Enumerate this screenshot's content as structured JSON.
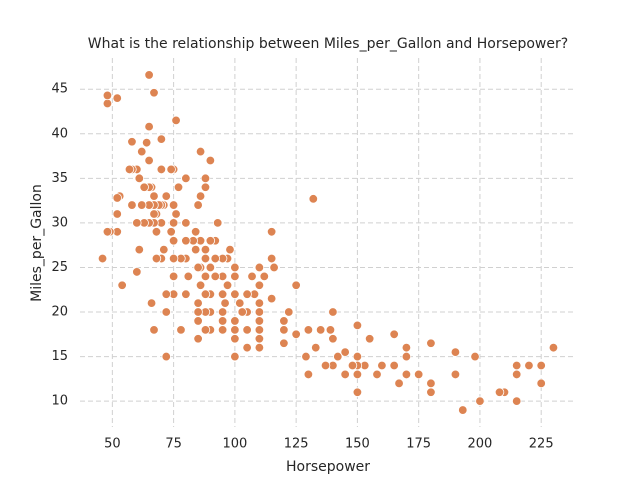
{
  "chart_data": {
    "type": "scatter",
    "title": "What is the relationship between Miles_per_Gallon and Horsepower?",
    "x_label": "Horsepower",
    "y_label": "Miles_per_Gallon",
    "color": "#dd8452",
    "grid": true,
    "xlim": [
      36.8,
      239.2
    ],
    "ylim": [
      7.1,
      48.5
    ],
    "xticks": [
      50,
      75,
      100,
      125,
      150,
      175,
      200,
      225
    ],
    "yticks": [
      10,
      15,
      20,
      25,
      30,
      35,
      40,
      45
    ],
    "x": [
      46,
      48,
      48,
      52,
      52,
      49,
      53,
      54,
      58,
      60,
      61,
      62,
      65,
      65,
      67,
      70,
      76,
      132,
      193,
      200,
      215,
      230,
      225,
      225,
      220,
      215,
      215,
      210,
      208,
      198,
      190,
      190,
      180,
      180,
      180,
      175,
      170,
      170,
      170,
      167,
      165,
      165,
      160,
      158,
      155,
      153,
      150,
      150,
      150,
      150,
      150,
      148,
      145,
      145,
      142,
      140,
      140,
      140,
      139,
      137,
      135,
      133,
      130,
      130,
      129,
      125,
      125,
      122,
      120,
      120,
      120,
      116,
      115,
      115,
      115,
      112,
      110,
      110,
      110,
      110,
      110,
      110,
      110,
      110,
      108,
      107,
      105,
      105,
      105,
      105,
      103,
      102,
      100,
      100,
      100,
      100,
      100,
      100,
      100,
      98,
      97,
      97,
      96,
      95,
      95,
      95,
      95,
      95,
      95,
      93,
      92,
      92,
      92,
      90,
      90,
      90,
      90,
      90,
      90,
      88,
      88,
      88,
      88,
      88,
      88,
      88,
      88,
      86,
      86,
      86,
      86,
      86,
      85,
      85,
      85,
      85,
      85,
      85,
      84,
      84,
      83,
      81,
      80,
      80,
      80,
      80,
      80,
      78,
      78,
      77,
      76,
      75,
      75,
      75,
      75,
      75,
      75,
      75,
      74,
      74,
      72,
      72,
      72,
      72,
      71,
      71,
      70,
      70,
      70,
      70,
      69,
      68,
      68,
      68,
      67,
      67,
      67,
      67,
      67,
      66,
      66,
      65,
      65,
      65,
      65,
      64,
      63,
      63,
      62,
      61,
      60,
      60,
      58,
      58,
      57,
      53,
      52,
      52,
      48
    ],
    "y": [
      26,
      43.4,
      44.3,
      44,
      29,
      29,
      33,
      23,
      39.1,
      36,
      27,
      38,
      46.6,
      40.8,
      44.6,
      39.4,
      41.5,
      32.7,
      9,
      10,
      10,
      16,
      12,
      14,
      14,
      14,
      13,
      11,
      11,
      15,
      15.5,
      13,
      16.5,
      12,
      11,
      13,
      16,
      15,
      13,
      12,
      17.5,
      14,
      14,
      13,
      17,
      14,
      18.5,
      15,
      14,
      11,
      13,
      14,
      15.5,
      13,
      15,
      20,
      17,
      14,
      18,
      14,
      18,
      16,
      18,
      13,
      15,
      23,
      17.5,
      20,
      19,
      18,
      16.5,
      25,
      29,
      26,
      21.5,
      24,
      25,
      23,
      21,
      20,
      19,
      18,
      17,
      16,
      22,
      24,
      20,
      18,
      16,
      22,
      20,
      21,
      25,
      24,
      22,
      19,
      18,
      17,
      15,
      27,
      23,
      26,
      21,
      26,
      24,
      22,
      20,
      19,
      18,
      30,
      28,
      26,
      24,
      37,
      28,
      25,
      22,
      20,
      18,
      35,
      34,
      27,
      26,
      24,
      22,
      20,
      18,
      38,
      33,
      28,
      25,
      23,
      32,
      25,
      21,
      20,
      19,
      17,
      29,
      27,
      28,
      24,
      35,
      30,
      28,
      26,
      22,
      26,
      18,
      34,
      31,
      36,
      32,
      30,
      28,
      26,
      24,
      22,
      36,
      29,
      33,
      22,
      20,
      15,
      32,
      27,
      36,
      32,
      30,
      26,
      32,
      31,
      29,
      26,
      33,
      32,
      31,
      30,
      18,
      34,
      21,
      37,
      34,
      32,
      30,
      39,
      34,
      30,
      32,
      35,
      30,
      24.5,
      36,
      32,
      36,
      33,
      31,
      32.8,
      29
    ]
  }
}
